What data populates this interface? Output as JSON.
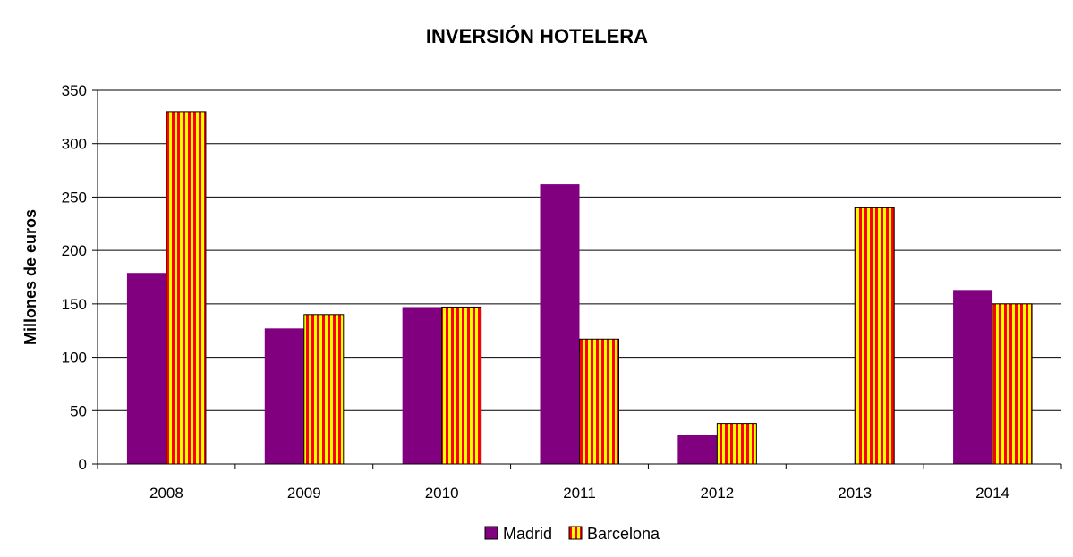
{
  "colors": {
    "madrid": "#800080",
    "barcelona_stripe_a": "#ff0000",
    "barcelona_stripe_b": "#ffff00",
    "grid": "#000000",
    "background": "#ffffff"
  },
  "chart_data": {
    "type": "bar",
    "title": "INVERSIÓN HOTELERA",
    "xlabel": "",
    "ylabel": "Millones de euros",
    "ylim": [
      0,
      350
    ],
    "yticks": [
      0,
      50,
      100,
      150,
      200,
      250,
      300,
      350
    ],
    "categories": [
      "2008",
      "2009",
      "2010",
      "2011",
      "2012",
      "2013",
      "2014"
    ],
    "series": [
      {
        "name": "Madrid",
        "values": [
          179,
          127,
          147,
          262,
          27,
          0,
          163
        ],
        "color": "#800080",
        "pattern": "solid"
      },
      {
        "name": "Barcelona",
        "values": [
          330,
          140,
          147,
          117,
          38,
          240,
          150
        ],
        "color": "#ff0000",
        "pattern": "vertical-stripes-red-yellow"
      }
    ],
    "grid": true,
    "legend": "bottom-center"
  }
}
